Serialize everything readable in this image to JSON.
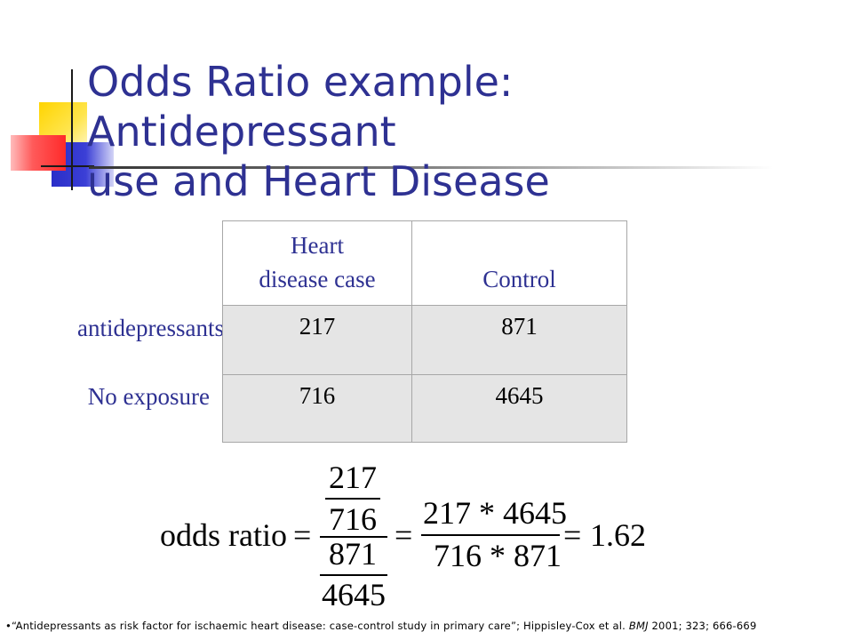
{
  "slide": {
    "title_line1": "Odds Ratio example: Antidepressant",
    "title_line2": "use and Heart Disease"
  },
  "table": {
    "columns": [
      "Heart disease case",
      "Control"
    ],
    "column1_line1": "Heart",
    "column1_line2": "disease case",
    "column2": "Control",
    "rows": [
      {
        "label": "antidepressants",
        "values": [
          "217",
          "871"
        ]
      },
      {
        "label": "No exposure",
        "values": [
          "716",
          "4645"
        ]
      }
    ]
  },
  "formula": {
    "lhs": "odds ratio",
    "eq": "=",
    "frac1_num": "217",
    "frac1_den": "716",
    "frac2_num": "871",
    "frac2_den": "4645",
    "prod_num": "217 * 4645",
    "prod_den": "716 * 871",
    "result": "1.62"
  },
  "footnote": {
    "bullet": "•",
    "text_before": "“Antidepressants as risk factor for ischaemic heart disease: case-control study in primary care”; Hippisley-Cox et al.",
    "journal": "BMJ",
    "text_after": "2001; 323; 666-669"
  }
}
